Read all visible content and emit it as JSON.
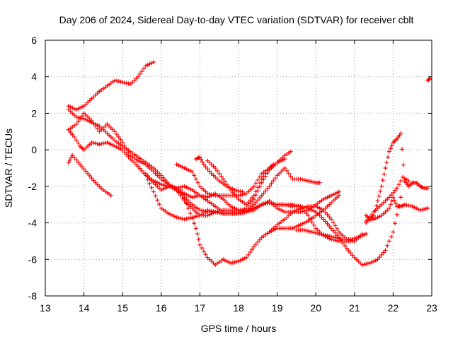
{
  "chart_data": {
    "type": "scatter",
    "title": "Day 206 of 2024, Sidereal Day-to-day VTEC variation (SDTVAR) for receiver cblt",
    "xlabel": "GPS time / hours",
    "ylabel": "SDTVAR / TECUs",
    "xlim": [
      13,
      23
    ],
    "ylim": [
      -8,
      6
    ],
    "xticks": [
      "13",
      "14",
      "15",
      "16",
      "17",
      "18",
      "19",
      "20",
      "21",
      "22",
      "23"
    ],
    "yticks": [
      "-8",
      "-6",
      "-4",
      "-2",
      "0",
      "2",
      "4",
      "6"
    ],
    "grid": true,
    "marker": "plus",
    "color": "#ff0000",
    "series": [
      {
        "name": "s1",
        "x": [
          13.6,
          13.8,
          14.0,
          14.2,
          14.4,
          14.6,
          14.8,
          15.0,
          15.2,
          15.4,
          15.6,
          15.8
        ],
        "y": [
          2.4,
          2.2,
          2.4,
          2.8,
          3.2,
          3.5,
          3.8,
          3.7,
          3.6,
          4.0,
          4.6,
          4.8
        ]
      },
      {
        "name": "s2",
        "x": [
          13.6,
          13.8,
          14.0,
          14.2,
          14.4,
          14.6,
          14.8,
          15.0,
          15.2,
          15.4,
          15.6,
          15.8,
          16.0,
          16.2,
          16.4,
          16.6,
          16.8,
          17.0,
          17.2,
          17.4,
          17.6,
          17.8,
          18.0,
          18.2,
          18.4,
          18.6,
          18.8,
          19.0,
          19.2,
          19.4,
          19.6,
          19.8,
          20.0,
          20.2,
          20.4,
          20.6,
          20.8,
          21.0,
          21.2,
          21.4,
          21.6,
          21.8,
          22.0,
          22.2
        ],
        "y": [
          2.2,
          1.8,
          1.7,
          1.5,
          1.3,
          0.9,
          0.5,
          0.2,
          -0.1,
          -0.4,
          -0.7,
          -1.0,
          -1.4,
          -1.9,
          -2.2,
          -2.6,
          -3.0,
          -3.3,
          -3.4,
          -3.4,
          -3.5,
          -3.5,
          -3.5,
          -3.4,
          -3.2,
          -3.0,
          -2.9,
          -3.0,
          -3.0,
          -3.0,
          -3.1,
          -3.2,
          -3.4,
          -3.8,
          -4.3,
          -4.8,
          -5.4,
          -5.9,
          -6.3,
          -6.2,
          -6.0,
          -5.5,
          -4.5,
          -2.6
        ]
      },
      {
        "name": "s3",
        "x": [
          13.6,
          13.75,
          13.9,
          14.0,
          14.2,
          14.4,
          14.6,
          14.8,
          15.0,
          15.2,
          15.4,
          15.6,
          15.8,
          16.0,
          16.2,
          16.4,
          16.6,
          16.8,
          17.0,
          17.2,
          17.4,
          17.6,
          17.8,
          18.0,
          18.2,
          18.4,
          18.6,
          18.8,
          19.0,
          19.2,
          19.4,
          19.6,
          19.8,
          20.0,
          20.2,
          20.4,
          20.6
        ],
        "y": [
          1.1,
          0.7,
          0.2,
          0.0,
          0.4,
          0.3,
          0.4,
          0.2,
          0.0,
          -0.5,
          -0.9,
          -1.4,
          -1.7,
          -1.9,
          -2.0,
          -2.2,
          -2.8,
          -3.2,
          -3.6,
          -3.6,
          -3.4,
          -3.3,
          -3.3,
          -3.3,
          -3.3,
          -3.2,
          -3.0,
          -2.8,
          -3.2,
          -3.4,
          -3.4,
          -3.4,
          -3.3,
          -3.0,
          -2.7,
          -2.5,
          -2.3
        ]
      },
      {
        "name": "s4",
        "x": [
          13.6,
          13.8,
          14.0,
          14.2,
          14.4,
          14.6,
          14.8,
          15.0,
          15.2,
          15.4,
          15.6,
          15.8,
          16.0,
          16.2,
          16.4,
          16.6,
          16.8,
          17.0,
          17.2,
          17.4,
          17.6,
          17.8,
          18.0,
          18.2,
          18.4,
          18.6,
          18.8,
          19.0,
          19.2,
          19.35
        ],
        "y": [
          1.1,
          1.4,
          2.0,
          1.6,
          1.0,
          1.4,
          1.0,
          0.4,
          -0.3,
          -0.6,
          -0.8,
          -1.2,
          -1.6,
          -1.9,
          -2.1,
          -2.0,
          -2.2,
          -2.5,
          -2.8,
          -3.1,
          -3.4,
          -3.4,
          -3.4,
          -3.2,
          -2.7,
          -1.8,
          -1.1,
          -0.7,
          -0.3,
          -0.1
        ]
      },
      {
        "name": "s5",
        "x": [
          13.6,
          13.7,
          13.9,
          14.1,
          14.3,
          14.5,
          14.7
        ],
        "y": [
          -0.7,
          -0.3,
          -0.8,
          -1.3,
          -1.8,
          -2.2,
          -2.5
        ]
      },
      {
        "name": "s6",
        "x": [
          15.6,
          15.8,
          16.0,
          16.2,
          16.4,
          16.6,
          16.8,
          17.0,
          17.2,
          17.4,
          17.6,
          17.8,
          18.0,
          18.2,
          18.4,
          18.6,
          18.8,
          19.0,
          19.2,
          19.4,
          19.6,
          19.8,
          20.0,
          20.2,
          20.4,
          20.6,
          20.8,
          21.0,
          21.2
        ],
        "y": [
          -1.3,
          -1.8,
          -2.2,
          -2.0,
          -2.2,
          -2.4,
          -2.6,
          -2.5,
          -2.6,
          -2.4,
          -2.7,
          -3.1,
          -3.3,
          -3.4,
          -3.3,
          -3.0,
          -2.9,
          -3.0,
          -3.0,
          -3.1,
          -3.1,
          -3.6,
          -4.3,
          -4.7,
          -4.9,
          -5.0,
          -5.0,
          -5.0,
          -4.6
        ]
      },
      {
        "name": "s7",
        "x": [
          15.6,
          15.8,
          16.0,
          16.2,
          16.4,
          16.6,
          16.8,
          17.0,
          17.2,
          17.4,
          17.6,
          17.8,
          18.0,
          18.2,
          18.4,
          18.6,
          18.8,
          19.0,
          19.2,
          19.4,
          19.6,
          19.8,
          20.0,
          20.1
        ],
        "y": [
          -1.4,
          -2.3,
          -3.2,
          -3.5,
          -3.7,
          -3.8,
          -3.7,
          -3.6,
          -3.3,
          -3.4,
          -3.5,
          -3.5,
          -3.5,
          -3.4,
          -3.0,
          -2.5,
          -2.0,
          -1.4,
          -1.0,
          -1.6,
          -1.6,
          -1.7,
          -1.8,
          -1.8
        ]
      },
      {
        "name": "s8",
        "x": [
          16.4,
          16.6,
          16.8,
          17.0,
          17.2,
          17.4,
          17.6,
          17.8,
          18.0,
          18.2,
          18.4,
          18.6,
          18.8,
          19.0,
          19.2
        ],
        "y": [
          -0.8,
          -1.0,
          -1.2,
          -2.0,
          -2.4,
          -2.5,
          -2.5,
          -2.5,
          -2.5,
          -2.4,
          -2.0,
          -1.3,
          -1.0,
          -0.7,
          -0.5
        ]
      },
      {
        "name": "s9",
        "x": [
          16.5,
          16.7,
          16.9,
          17.0,
          17.2,
          17.4,
          17.6,
          17.8,
          18.0,
          18.2,
          18.4,
          18.6,
          18.8,
          19.0,
          19.2,
          19.4,
          19.6,
          19.8,
          20.0,
          20.2,
          20.4,
          20.6,
          20.8,
          21.0
        ],
        "y": [
          -2.2,
          -3.2,
          -4.3,
          -5.2,
          -5.9,
          -6.3,
          -6.0,
          -6.2,
          -6.1,
          -5.9,
          -5.3,
          -4.8,
          -4.5,
          -4.1,
          -3.8,
          -3.4,
          -3.2,
          -3.1,
          -3.1,
          -3.3,
          -3.8,
          -4.5,
          -4.9,
          -5.0
        ]
      },
      {
        "name": "s10",
        "x": [
          16.9,
          17.0,
          17.1,
          17.3,
          17.5,
          17.7,
          17.9,
          18.1
        ],
        "y": [
          -0.5,
          -0.4,
          -0.8,
          -1.3,
          -1.7,
          -2.0,
          -2.2,
          -2.3
        ]
      },
      {
        "name": "s11",
        "x": [
          17.2,
          17.4,
          17.6,
          17.8,
          18.0,
          18.2,
          18.4,
          18.6,
          18.8,
          18.9
        ],
        "y": [
          -0.6,
          -1.0,
          -1.6,
          -2.2,
          -2.7,
          -3.0,
          -2.5,
          -1.6,
          -1.0,
          -0.8
        ]
      },
      {
        "name": "s12",
        "x": [
          18.8,
          19.0,
          19.2,
          19.4,
          19.6,
          19.8,
          20.0,
          20.2,
          20.4,
          20.6
        ],
        "y": [
          -4.5,
          -4.3,
          -4.3,
          -4.3,
          -4.1,
          -3.9,
          -3.6,
          -3.3,
          -2.9,
          -2.5
        ]
      },
      {
        "name": "s13",
        "x": [
          19.5,
          19.7,
          19.9,
          20.1,
          20.3,
          20.5,
          20.7,
          20.9,
          21.1,
          21.3
        ],
        "y": [
          -4.4,
          -4.4,
          -4.5,
          -4.6,
          -4.7,
          -4.8,
          -4.9,
          -4.9,
          -4.8,
          -4.6
        ]
      },
      {
        "name": "s14",
        "x": [
          21.3,
          21.4,
          21.5,
          21.6,
          21.7,
          21.8,
          21.9,
          22.0,
          22.1,
          22.2,
          22.3,
          22.4,
          22.5,
          22.6,
          22.7,
          22.8,
          22.9
        ],
        "y": [
          -3.6,
          -3.8,
          -3.6,
          -2.8,
          -2.0,
          -1.0,
          -0.1,
          0.4,
          0.6,
          0.9,
          -1.7,
          -2.0,
          -1.8,
          -1.8,
          -2.0,
          -2.1,
          -2.1
        ]
      },
      {
        "name": "s15",
        "x": [
          21.3,
          21.5,
          21.7,
          21.9,
          22.0,
          22.1,
          22.2,
          22.3,
          22.5,
          22.7,
          22.9
        ],
        "y": [
          -3.9,
          -3.8,
          -3.6,
          -3.2,
          -2.6,
          -3.1,
          -3.1,
          -3.0,
          -3.1,
          -3.3,
          -3.2
        ]
      },
      {
        "name": "s16",
        "x": [
          21.3,
          21.5,
          21.7,
          21.9,
          22.1,
          22.25,
          22.4
        ],
        "y": [
          -4.0,
          -3.4,
          -3.0,
          -2.6,
          -2.1,
          -1.5,
          -1.7
        ]
      },
      {
        "name": "s17",
        "x": [
          22.9,
          22.95
        ],
        "y": [
          3.8,
          3.9
        ]
      }
    ]
  }
}
